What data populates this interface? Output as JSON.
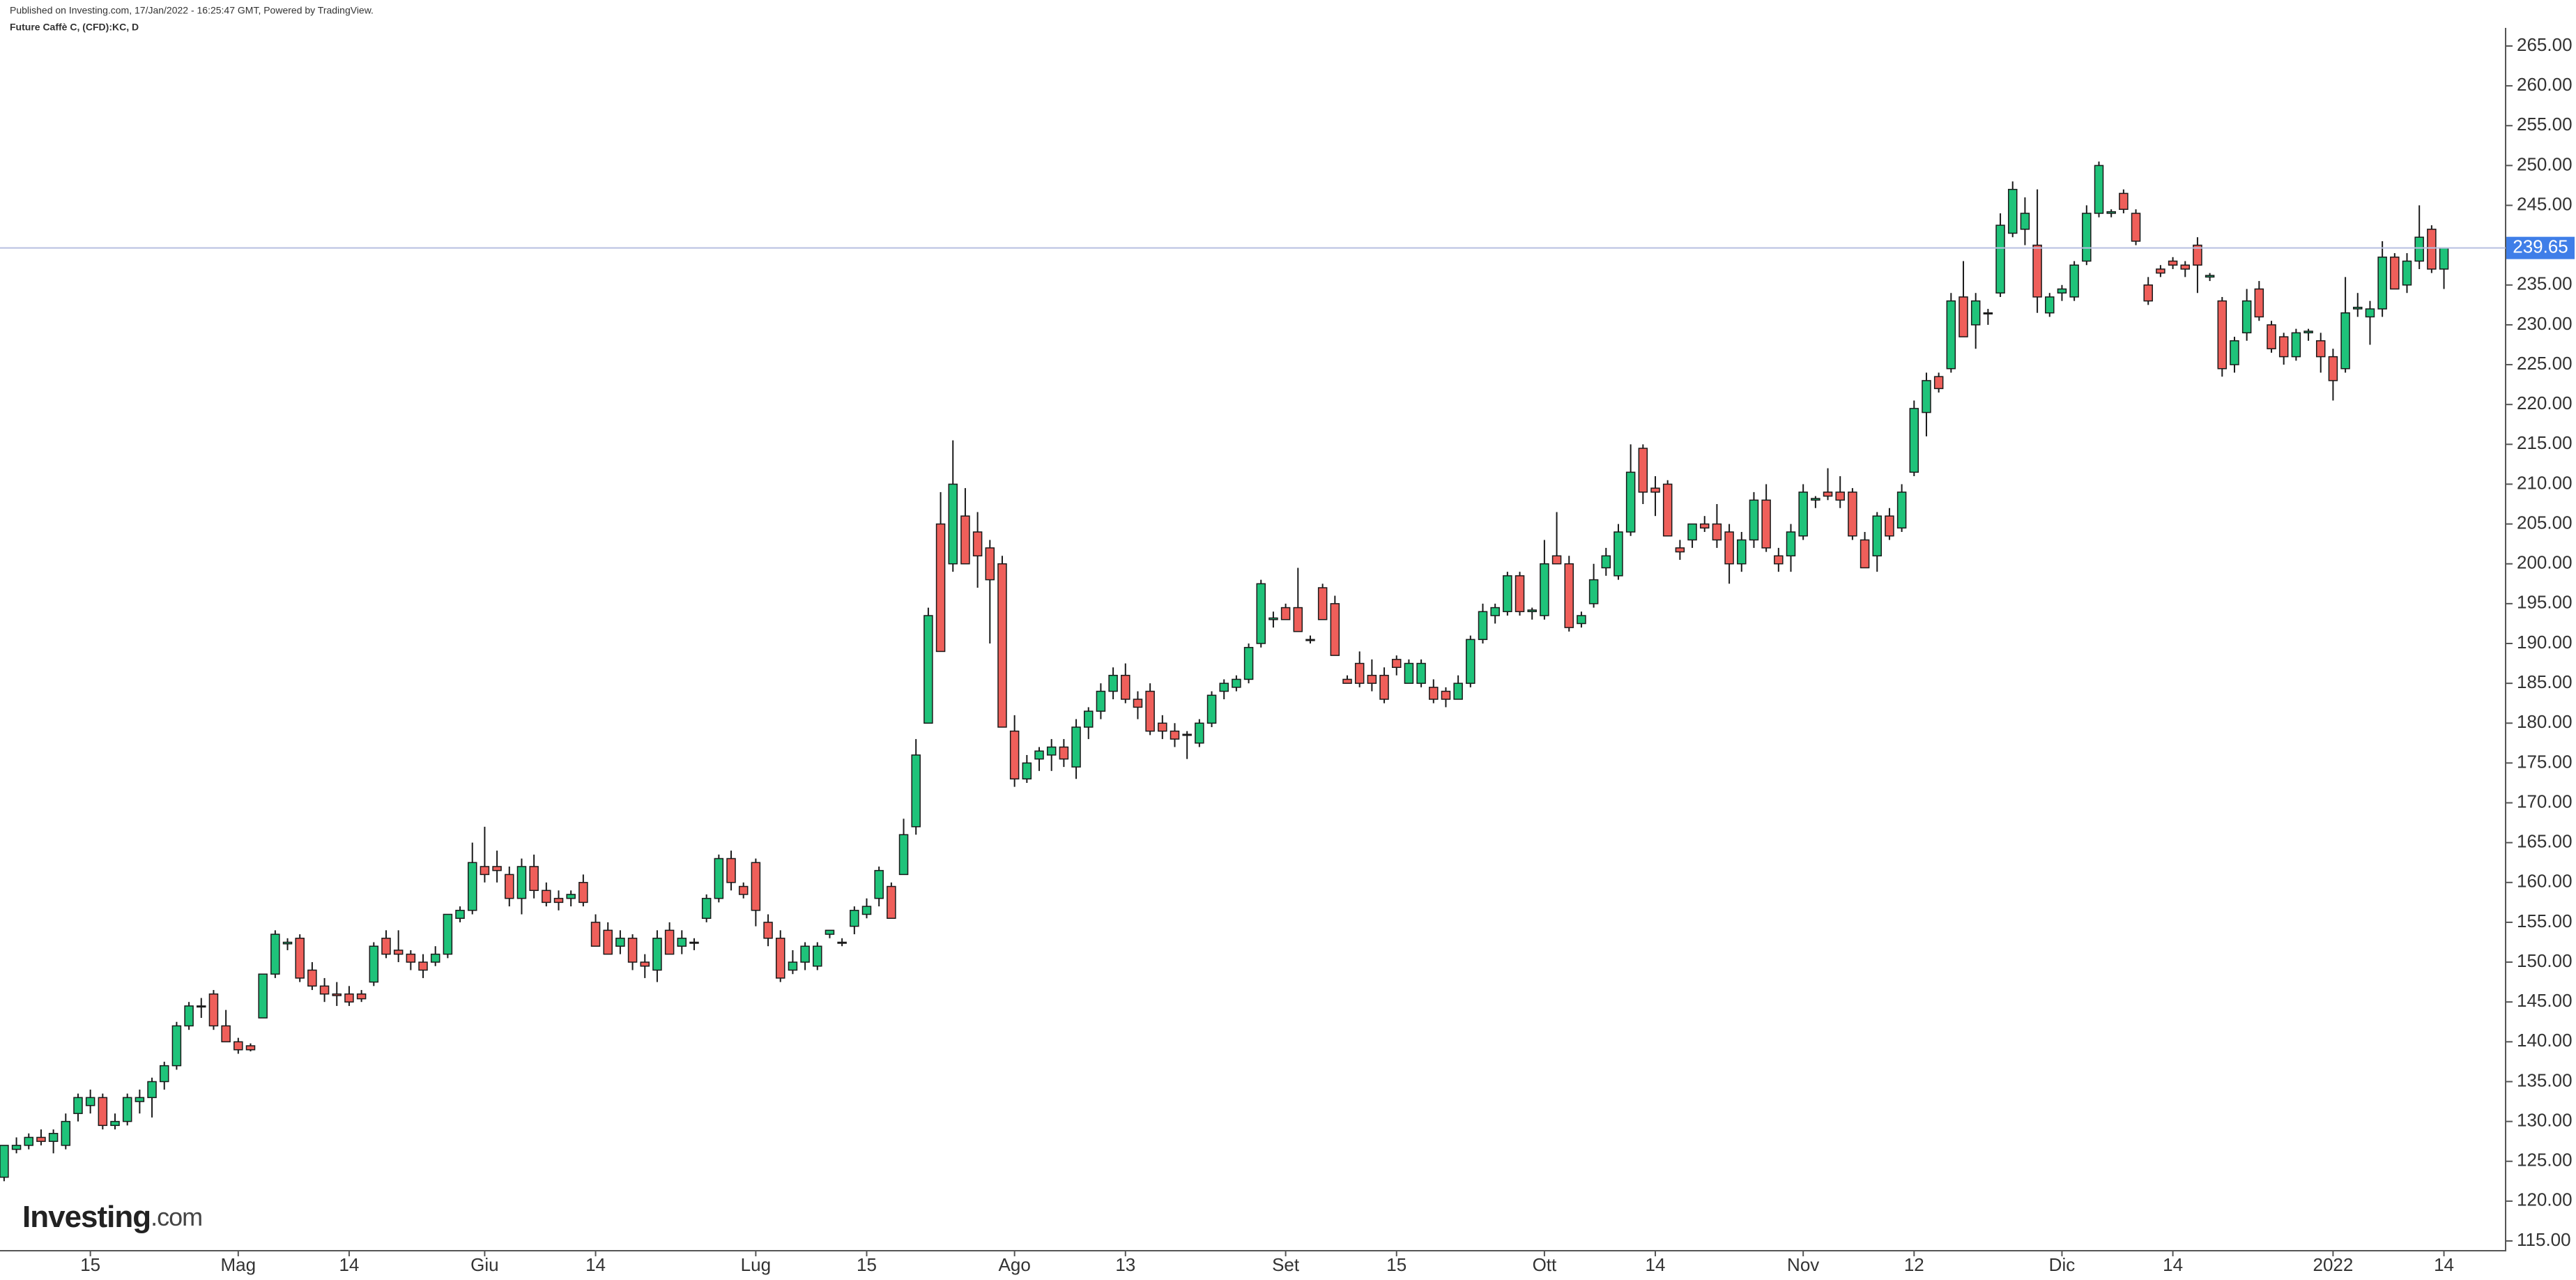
{
  "chart_data": {
    "type": "candlestick",
    "header": "Published on Investing.com, 17/Jan/2022 - 16:25:47 GMT, Powered by TradingView.",
    "title": "Future Caffè C, (CFD):KC, D",
    "watermark": [
      "Investing",
      ".com"
    ],
    "up_color": "#1fc37a",
    "down_color": "#ef5f5a",
    "outline_color": "#1a1a1a",
    "last_price": 239.65,
    "last_price_color": "#3f7ee8",
    "categories": [
      null,
      null,
      null,
      null,
      null,
      null,
      null,
      "15",
      null,
      null,
      null,
      null,
      null,
      null,
      null,
      null,
      null,
      null,
      null,
      "Mag",
      null,
      null,
      null,
      null,
      null,
      null,
      null,
      null,
      "14",
      null,
      null,
      null,
      null,
      null,
      null,
      null,
      null,
      null,
      null,
      "Giu",
      null,
      null,
      null,
      null,
      null,
      null,
      null,
      null,
      "14",
      null,
      null,
      null,
      null,
      null,
      null,
      null,
      null,
      null,
      null,
      null,
      null,
      "Lug",
      null,
      null,
      null,
      null,
      null,
      null,
      null,
      null,
      "15",
      null,
      null,
      null,
      null,
      null,
      null,
      null,
      null,
      null,
      null,
      null,
      "Ago",
      null,
      null,
      null,
      null,
      null,
      null,
      null,
      null,
      "13",
      null,
      null,
      null,
      null,
      null,
      null,
      null,
      null,
      null,
      null,
      null,
      null,
      "Set",
      null,
      null,
      null,
      null,
      null,
      null,
      null,
      null,
      "15",
      null,
      null,
      null,
      null,
      null,
      null,
      null,
      null,
      null,
      null,
      null,
      "Ott",
      null,
      null,
      null,
      null,
      null,
      null,
      null,
      null,
      "14",
      null,
      null,
      null,
      null,
      null,
      null,
      null,
      null,
      null,
      null,
      null,
      "Nov",
      null,
      null,
      null,
      null,
      null,
      null,
      null,
      null,
      "12",
      null,
      null,
      null,
      null,
      null,
      null,
      null,
      null,
      null,
      null,
      null,
      "Dic",
      null,
      null,
      null,
      null,
      null,
      null,
      null,
      null,
      "14",
      null,
      null,
      null,
      null,
      null,
      null,
      null,
      null,
      null,
      null,
      null,
      null,
      "2022",
      null,
      null,
      null,
      null,
      null,
      null,
      null,
      null,
      "14"
    ],
    "open": [
      123,
      126.5,
      127,
      128,
      127.5,
      127,
      131,
      132,
      133,
      129.5,
      130,
      132.5,
      133,
      135,
      137,
      142,
      144.5,
      146,
      142,
      140,
      139.5,
      143,
      148.5,
      152.3,
      153,
      149,
      147,
      146,
      146,
      146,
      147.5,
      153,
      151.5,
      151,
      150,
      150,
      151,
      155.5,
      156.5,
      162,
      162,
      161,
      158,
      162,
      159,
      158,
      158,
      160,
      155,
      154,
      152,
      153,
      150,
      149,
      154,
      152,
      152.5,
      155.5,
      158,
      163,
      159.5,
      162.5,
      155,
      153,
      149,
      150,
      149.5,
      153.5,
      152.5,
      154.5,
      156,
      158,
      159.5,
      161,
      167,
      180,
      205,
      200,
      206,
      204,
      202,
      200,
      179,
      173,
      175.5,
      176,
      177,
      174.5,
      179.5,
      181.5,
      184,
      186,
      183,
      184,
      180,
      179,
      178.5,
      177.5,
      180,
      184,
      184.5,
      185.5,
      190,
      193,
      194.5,
      194.5,
      190.5,
      197,
      195,
      185.5,
      187.5,
      186,
      186,
      188,
      185,
      185,
      184.5,
      184,
      183,
      185,
      190.5,
      193.5,
      194,
      198.5,
      194,
      193.5,
      201,
      200,
      192.5,
      195,
      199.5,
      198.5,
      204,
      214.5,
      209.5,
      210,
      202,
      203,
      205,
      205,
      204,
      200,
      203,
      208,
      201,
      201,
      203.5,
      208,
      209,
      209,
      209,
      203,
      201,
      206,
      204.5,
      211.5,
      219,
      223.5,
      224.5,
      233.5,
      230,
      231.5,
      234,
      241.5,
      242,
      240,
      231.5,
      234,
      233.5,
      238,
      244,
      244,
      246.5,
      244,
      235,
      237,
      238,
      237.5,
      240,
      236,
      233,
      225,
      229,
      234.5,
      230,
      228.5,
      226,
      229,
      228,
      226,
      224.5,
      232,
      231,
      232,
      238.5,
      235,
      238,
      242,
      237
    ],
    "high": [
      127,
      128,
      128.5,
      129,
      129,
      131,
      133.5,
      134,
      133.5,
      131,
      133.5,
      134,
      135.5,
      137.5,
      142.5,
      145,
      145.5,
      146.5,
      144,
      140.5,
      139.8,
      148.5,
      154,
      153,
      153.5,
      150,
      148,
      147.5,
      147,
      146.5,
      152.5,
      154,
      154,
      151.5,
      151,
      152,
      156,
      157,
      165,
      167,
      164,
      162,
      163,
      163.5,
      160,
      159,
      159,
      161,
      156,
      155,
      154,
      153.5,
      151,
      154,
      155,
      154,
      153,
      158.5,
      163.5,
      164,
      160,
      163,
      156,
      154,
      151.5,
      152.5,
      152.5,
      154,
      153,
      157,
      158,
      162,
      160,
      168,
      178,
      194.5,
      209,
      215.5,
      209.5,
      206.5,
      203,
      201,
      181,
      176,
      177,
      178,
      178,
      180.5,
      182,
      185,
      187,
      187.5,
      184,
      185,
      181,
      180,
      179,
      180.5,
      184,
      185.5,
      186,
      190,
      198,
      194,
      195,
      199.5,
      191,
      197.5,
      196,
      186,
      189,
      188,
      187,
      188.5,
      188,
      188,
      185.5,
      184.5,
      186,
      191,
      195,
      195,
      199,
      199,
      194.5,
      203,
      206.5,
      201,
      194,
      200,
      202,
      205,
      215,
      215,
      211,
      210.5,
      203,
      205,
      206,
      207.5,
      205,
      204,
      209,
      210,
      202,
      205,
      210,
      208.5,
      212,
      211,
      209.5,
      204,
      206.5,
      207,
      210,
      220.5,
      224,
      224,
      234,
      238,
      234,
      232,
      244,
      248,
      246,
      247,
      234,
      235,
      238,
      245,
      250.5,
      244.5,
      247,
      244.5,
      236,
      237.5,
      238.5,
      238,
      241,
      236.5,
      233.5,
      228.5,
      234.5,
      235.5,
      230.5,
      229,
      229.5,
      229.5,
      229,
      227,
      236,
      234,
      233,
      240.5,
      239,
      239,
      245,
      242.5,
      239.5
    ],
    "low": [
      122.5,
      126,
      126.5,
      127,
      126,
      126.5,
      130,
      131,
      129,
      129,
      129.5,
      131,
      130.5,
      134,
      136.5,
      141.5,
      143,
      141.5,
      140,
      138.5,
      138.8,
      143,
      148,
      151.5,
      147.5,
      146.5,
      145,
      144.5,
      144.5,
      145,
      147,
      150.5,
      150,
      149,
      148,
      149.5,
      150.5,
      155,
      156,
      160,
      160,
      157,
      156,
      158,
      157,
      156.5,
      157,
      157,
      152,
      151,
      151,
      149,
      148,
      147.5,
      151,
      151,
      151.5,
      155,
      157.5,
      159,
      158,
      154.5,
      152,
      147.5,
      148.5,
      149,
      149,
      153,
      152,
      153.5,
      155.5,
      157,
      155.5,
      161,
      166,
      180,
      189,
      199,
      200,
      197,
      190,
      179.5,
      172,
      172.5,
      174,
      174,
      174.5,
      173,
      178,
      180.5,
      183,
      182.5,
      180.5,
      178.5,
      178,
      177,
      175.5,
      177,
      179.5,
      183,
      184,
      185,
      189.5,
      192,
      193,
      191.5,
      190,
      193,
      188.5,
      185,
      184.5,
      184,
      182.5,
      186,
      185,
      184.5,
      182.5,
      182,
      183,
      184.5,
      190,
      192.5,
      193.5,
      193.5,
      193,
      193,
      200,
      191.5,
      192,
      194.5,
      198.5,
      198,
      203.5,
      207.5,
      206,
      203.5,
      200.5,
      202,
      204,
      202,
      197.5,
      199,
      202,
      201.5,
      199,
      199,
      203,
      207,
      208,
      207,
      203,
      199.5,
      199,
      203,
      204,
      211,
      216,
      221.5,
      224,
      228.5,
      227,
      230,
      233.5,
      241,
      240,
      231.5,
      231,
      233,
      233,
      237.5,
      243.5,
      243.5,
      244,
      240,
      232.5,
      236,
      237,
      236,
      234,
      235.5,
      223.5,
      224,
      228,
      230.5,
      226.5,
      225,
      225.5,
      228,
      224,
      220.5,
      224,
      231,
      227.5,
      231,
      234.5,
      234,
      237,
      236.5,
      234.5
    ],
    "close": [
      127,
      127,
      128,
      127.5,
      128.5,
      130,
      133,
      133,
      129.5,
      130,
      133,
      133,
      135,
      137,
      142,
      144.5,
      144.4,
      142,
      140,
      139,
      139,
      148.5,
      153.5,
      152.5,
      148,
      147,
      146,
      145.8,
      145,
      145.4,
      152,
      151,
      151,
      150,
      149,
      151,
      156,
      156.5,
      162.5,
      161,
      161.5,
      158,
      162,
      159,
      157.5,
      157.5,
      158.5,
      157.5,
      152,
      151,
      153,
      150,
      149.5,
      153,
      151,
      153,
      152.5,
      158,
      163,
      160,
      158.5,
      156.5,
      153,
      148,
      150,
      152,
      152,
      154,
      152.5,
      156.5,
      157,
      161.5,
      155.5,
      166,
      176,
      193.5,
      189,
      210,
      200,
      201,
      198,
      179.5,
      173,
      175,
      176.5,
      177,
      175.5,
      179.5,
      181.5,
      184,
      186,
      183,
      182,
      179,
      179,
      178,
      178.6,
      180,
      183.5,
      185,
      185.5,
      189.5,
      197.5,
      193.2,
      193,
      191.5,
      190.4,
      193,
      188.5,
      185,
      185,
      185,
      183,
      187,
      187.5,
      187.5,
      183,
      183,
      185,
      190.5,
      194,
      194.5,
      198.5,
      194,
      194.2,
      200,
      200,
      192,
      193.5,
      198,
      201,
      204,
      211.5,
      209,
      209,
      203.5,
      201.5,
      205,
      204.5,
      203,
      200,
      203,
      208,
      202,
      200,
      204,
      209,
      208.2,
      208.5,
      208,
      203.5,
      199.5,
      206,
      203.5,
      209,
      219.5,
      223,
      222,
      233,
      228.5,
      233,
      231.4,
      242.5,
      247,
      244,
      233.5,
      233.5,
      234.5,
      237.5,
      244,
      250,
      244.2,
      244.5,
      240.5,
      233,
      236.5,
      237.5,
      237,
      237.5,
      236.2,
      224.5,
      228,
      233,
      231,
      227,
      226,
      229,
      229.2,
      226,
      223,
      231.5,
      232.2,
      232,
      238.5,
      234.5,
      238,
      241,
      237,
      239.65
    ],
    "ylim": [
      115,
      265
    ],
    "yticks": [
      {
        "value": 115,
        "label": "115.00"
      },
      {
        "value": 120,
        "label": "120.00"
      },
      {
        "value": 125,
        "label": "125.00"
      },
      {
        "value": 130,
        "label": "130.00"
      },
      {
        "value": 135,
        "label": "135.00"
      },
      {
        "value": 140,
        "label": "140.00"
      },
      {
        "value": 145,
        "label": "145.00"
      },
      {
        "value": 150,
        "label": "150.00"
      },
      {
        "value": 155,
        "label": "155.00"
      },
      {
        "value": 160,
        "label": "160.00"
      },
      {
        "value": 165,
        "label": "165.00"
      },
      {
        "value": 170,
        "label": "170.00"
      },
      {
        "value": 175,
        "label": "175.00"
      },
      {
        "value": 180,
        "label": "180.00"
      },
      {
        "value": 185,
        "label": "185.00"
      },
      {
        "value": 190,
        "label": "190.00"
      },
      {
        "value": 195,
        "label": "195.00"
      },
      {
        "value": 200,
        "label": "200.00"
      },
      {
        "value": 205,
        "label": "205.00"
      },
      {
        "value": 210,
        "label": "210.00"
      },
      {
        "value": 215,
        "label": "215.00"
      },
      {
        "value": 220,
        "label": "220.00"
      },
      {
        "value": 225,
        "label": "225.00"
      },
      {
        "value": 230,
        "label": "230.00"
      },
      {
        "value": 235,
        "label": "235.00"
      },
      {
        "value": 240,
        "label": "240.00"
      },
      {
        "value": 245,
        "label": "245.00"
      },
      {
        "value": 250,
        "label": "250.00"
      },
      {
        "value": 255,
        "label": "255.00"
      },
      {
        "value": 260,
        "label": "260.00"
      },
      {
        "value": 265,
        "label": "265.00"
      }
    ]
  }
}
